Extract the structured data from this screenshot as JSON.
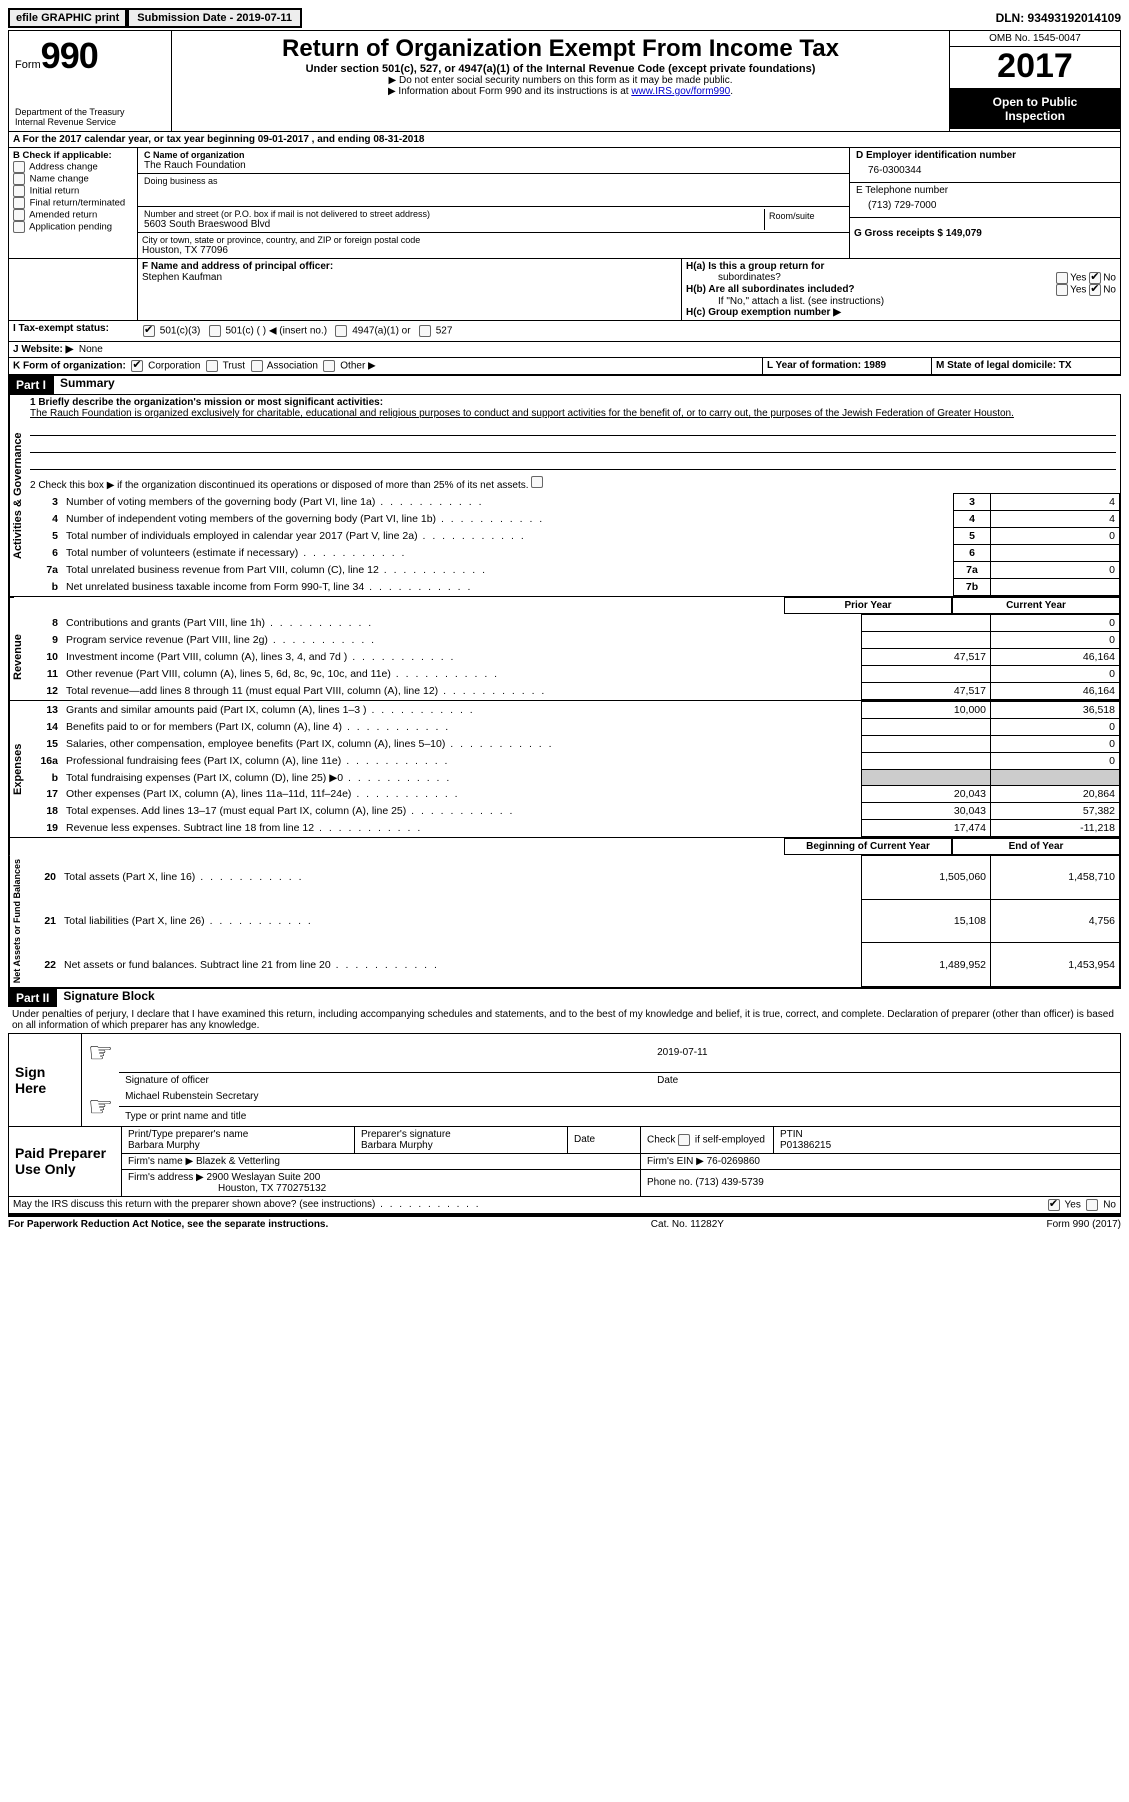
{
  "topbar": {
    "efile": "efile GRAPHIC print",
    "submission_label": "Submission Date - 2019-07-11",
    "dln": "DLN: 93493192014109"
  },
  "header": {
    "form_label": "Form",
    "form_number": "990",
    "dept1": "Department of the Treasury",
    "dept2": "Internal Revenue Service",
    "title": "Return of Organization Exempt From Income Tax",
    "subtitle": "Under section 501(c), 527, or 4947(a)(1) of the Internal Revenue Code (except private foundations)",
    "note1": "▶ Do not enter social security numbers on this form as it may be made public.",
    "note2_pre": "▶ Information about Form 990 and its instructions is at ",
    "note2_link": "www.IRS.gov/form990",
    "omb": "OMB No. 1545-0047",
    "year": "2017",
    "open1": "Open to Public",
    "open2": "Inspection"
  },
  "lineA": "A   For the 2017 calendar year, or tax year beginning 09-01-2017   , and ending 08-31-2018",
  "boxB": {
    "title": "B Check if applicable:",
    "items": [
      "Address change",
      "Name change",
      "Initial return",
      "Final return/terminated",
      "Amended return",
      "Application pending"
    ]
  },
  "boxC": {
    "label_name": "C Name of organization",
    "org_name": "The Rauch Foundation",
    "dba_label": "Doing business as",
    "addr_label": "Number and street (or P.O. box if mail is not delivered to street address)",
    "room_label": "Room/suite",
    "addr": "5603 South Braeswood Blvd",
    "city_label": "City or town, state or province, country, and ZIP or foreign postal code",
    "city": "Houston, TX  77096"
  },
  "boxD": {
    "label": "D Employer identification number",
    "ein": "76-0300344",
    "tel_label": "E Telephone number",
    "tel": "(713) 729-7000",
    "gross_label": "G Gross receipts $ 149,079"
  },
  "boxF": {
    "label": "F  Name and address of principal officer:",
    "name": "Stephen Kaufman"
  },
  "boxH": {
    "ha": "H(a)  Is this a group return for",
    "ha2": "subordinates?",
    "hb": "H(b) Are all subordinates included?",
    "hb_note": "If \"No,\" attach a list. (see instructions)",
    "hc": "H(c)  Group exemption number ▶",
    "yes": "Yes",
    "no": "No"
  },
  "boxI": {
    "label": "I  Tax-exempt status:",
    "opts": [
      "501(c)(3)",
      "501(c) (  ) ◀ (insert no.)",
      "4947(a)(1) or",
      "527"
    ]
  },
  "boxJ": {
    "label": "J  Website: ▶",
    "val": "None"
  },
  "boxK": {
    "label": "K Form of organization:",
    "opts": [
      "Corporation",
      "Trust",
      "Association",
      "Other ▶"
    ],
    "L": "L Year of formation: 1989",
    "M": "M State of legal domicile: TX"
  },
  "part1": {
    "bar": "Part I",
    "title": "Summary"
  },
  "summary": {
    "l1_label": "1  Briefly describe the organization's mission or most significant activities:",
    "l1_text": "The Rauch Foundation is organized exclusively for charitable, educational and religious purposes to conduct and support activities for the benefit of, or to carry out, the purposes of the Jewish Federation of Greater Houston.",
    "l2": "2   Check this box ▶        if the organization discontinued its operations or disposed of more than 25% of its net assets.",
    "rows_gov": [
      {
        "n": "3",
        "t": "Number of voting members of the governing body (Part VI, line 1a)",
        "box": "3",
        "v": "4"
      },
      {
        "n": "4",
        "t": "Number of independent voting members of the governing body (Part VI, line 1b)",
        "box": "4",
        "v": "4"
      },
      {
        "n": "5",
        "t": "Total number of individuals employed in calendar year 2017 (Part V, line 2a)",
        "box": "5",
        "v": "0"
      },
      {
        "n": "6",
        "t": "Total number of volunteers (estimate if necessary)",
        "box": "6",
        "v": ""
      },
      {
        "n": "7a",
        "t": "Total unrelated business revenue from Part VIII, column (C), line 12",
        "box": "7a",
        "v": "0"
      },
      {
        "n": "b",
        "t": "Net unrelated business taxable income from Form 990-T, line 34",
        "box": "7b",
        "v": ""
      }
    ],
    "col_prior": "Prior Year",
    "col_current": "Current Year",
    "rows_rev": [
      {
        "n": "8",
        "t": "Contributions and grants (Part VIII, line 1h)",
        "p": "",
        "c": "0"
      },
      {
        "n": "9",
        "t": "Program service revenue (Part VIII, line 2g)",
        "p": "",
        "c": "0"
      },
      {
        "n": "10",
        "t": "Investment income (Part VIII, column (A), lines 3, 4, and 7d )",
        "p": "47,517",
        "c": "46,164"
      },
      {
        "n": "11",
        "t": "Other revenue (Part VIII, column (A), lines 5, 6d, 8c, 9c, 10c, and 11e)",
        "p": "",
        "c": "0"
      },
      {
        "n": "12",
        "t": "Total revenue—add lines 8 through 11 (must equal Part VIII, column (A), line 12)",
        "p": "47,517",
        "c": "46,164"
      }
    ],
    "rows_exp": [
      {
        "n": "13",
        "t": "Grants and similar amounts paid (Part IX, column (A), lines 1–3 )",
        "p": "10,000",
        "c": "36,518"
      },
      {
        "n": "14",
        "t": "Benefits paid to or for members (Part IX, column (A), line 4)",
        "p": "",
        "c": "0"
      },
      {
        "n": "15",
        "t": "Salaries, other compensation, employee benefits (Part IX, column (A), lines 5–10)",
        "p": "",
        "c": "0"
      },
      {
        "n": "16a",
        "t": "Professional fundraising fees (Part IX, column (A), line 11e)",
        "p": "",
        "c": "0"
      },
      {
        "n": "b",
        "t": "Total fundraising expenses (Part IX, column (D), line 25) ▶0",
        "p": "shaded",
        "c": "shaded"
      },
      {
        "n": "17",
        "t": "Other expenses (Part IX, column (A), lines 11a–11d, 11f–24e)",
        "p": "20,043",
        "c": "20,864"
      },
      {
        "n": "18",
        "t": "Total expenses. Add lines 13–17 (must equal Part IX, column (A), line 25)",
        "p": "30,043",
        "c": "57,382"
      },
      {
        "n": "19",
        "t": "Revenue less expenses. Subtract line 18 from line 12",
        "p": "17,474",
        "c": "-11,218"
      }
    ],
    "col_begin": "Beginning of Current Year",
    "col_end": "End of Year",
    "rows_net": [
      {
        "n": "20",
        "t": "Total assets (Part X, line 16)",
        "p": "1,505,060",
        "c": "1,458,710"
      },
      {
        "n": "21",
        "t": "Total liabilities (Part X, line 26)",
        "p": "15,108",
        "c": "4,756"
      },
      {
        "n": "22",
        "t": "Net assets or fund balances. Subtract line 21 from line 20",
        "p": "1,489,952",
        "c": "1,453,954"
      }
    ]
  },
  "sidelabels": {
    "gov": "Activities & Governance",
    "rev": "Revenue",
    "exp": "Expenses",
    "net": "Net Assets or Fund Balances"
  },
  "part2": {
    "bar": "Part II",
    "title": "Signature Block",
    "decl": "Under penalties of perjury, I declare that I have examined this return, including accompanying schedules and statements, and to the best of my knowledge and belief, it is true, correct, and complete. Declaration of preparer (other than officer) is based on all information of which preparer has any knowledge."
  },
  "sign": {
    "here": "Sign Here",
    "sig_officer": "Signature of officer",
    "date": "Date",
    "date_val": "2019-07-11",
    "name_val": "Michael Rubenstein  Secretary",
    "name_label": "Type or print name and title"
  },
  "paid": {
    "label": "Paid Preparer Use Only",
    "print_label": "Print/Type preparer's name",
    "print_val": "Barbara Murphy",
    "sig_label": "Preparer's signature",
    "sig_val": "Barbara Murphy",
    "date_label": "Date",
    "check_label": "Check        if self-employed",
    "ptin_label": "PTIN",
    "ptin_val": "P01386215",
    "firm_name_label": "Firm's name      ▶",
    "firm_name": "Blazek & Vetterling",
    "firm_ein_label": "Firm's EIN ▶",
    "firm_ein": "76-0269860",
    "firm_addr_label": "Firm's address ▶",
    "firm_addr": "2900 Weslayan Suite 200",
    "firm_city": "Houston, TX  770275132",
    "phone_label": "Phone no.",
    "phone": "(713) 439-5739"
  },
  "discuss": {
    "q": "May the IRS discuss this return with the preparer shown above? (see instructions)",
    "yes": "Yes",
    "no": "No"
  },
  "footer": {
    "left": "For Paperwork Reduction Act Notice, see the separate instructions.",
    "mid": "Cat. No. 11282Y",
    "right": "Form 990 (2017)"
  }
}
